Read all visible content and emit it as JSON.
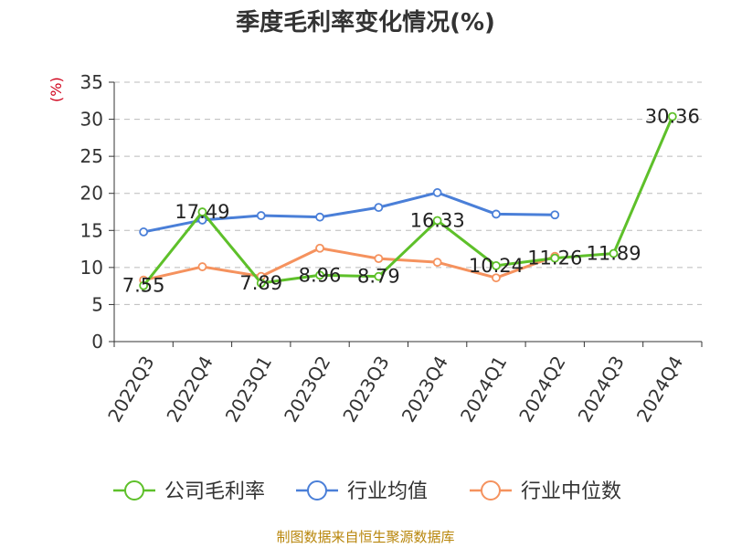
{
  "chart_data": {
    "type": "line",
    "title": "季度毛利率变化情况(%)",
    "y_unit": "(%)",
    "ylim": [
      0,
      35
    ],
    "y_ticks": [
      0,
      5,
      10,
      15,
      20,
      25,
      30,
      35
    ],
    "categories": [
      "2022Q3",
      "2022Q4",
      "2023Q1",
      "2023Q2",
      "2023Q3",
      "2023Q4",
      "2024Q1",
      "2024Q2",
      "2024Q3",
      "2024Q4"
    ],
    "grid": true,
    "legend_position": "bottom",
    "series": [
      {
        "name": "公司毛利率",
        "color": "#5ec02a",
        "values": [
          7.55,
          17.49,
          7.89,
          8.96,
          8.79,
          16.33,
          10.24,
          11.26,
          11.89,
          30.36
        ],
        "labels": [
          "7.55",
          "17.49",
          "7.89",
          "8.96",
          "8.79",
          "16.33",
          "10.24",
          "11.26",
          "11.89",
          "30.36"
        ]
      },
      {
        "name": "行业均值",
        "color": "#4a7fd8",
        "values": [
          14.8,
          16.4,
          17.0,
          16.8,
          18.1,
          20.1,
          17.2,
          17.1,
          null,
          null
        ]
      },
      {
        "name": "行业中位数",
        "color": "#f5925e",
        "values": [
          8.3,
          10.1,
          8.8,
          12.6,
          11.2,
          10.7,
          8.6,
          11.5,
          null,
          null
        ]
      }
    ]
  },
  "footer": "制图数据来自恒生聚源数据库"
}
